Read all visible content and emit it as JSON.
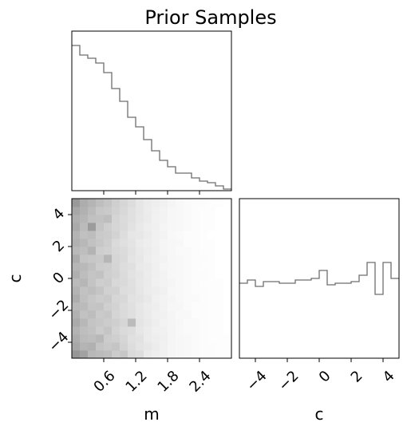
{
  "chart_data": {
    "type": "corner",
    "title": "Prior Samples",
    "parameters": [
      "m",
      "c"
    ],
    "xlabel_bottom_left": "m",
    "xlabel_bottom_right": "c",
    "ylabel_left": "c",
    "m_range": [
      0.0,
      3.0
    ],
    "c_range": [
      -5,
      5
    ],
    "m_ticks": [
      0.6,
      1.2,
      1.8,
      2.4
    ],
    "m_tick_labels": [
      "0.6",
      "1.2",
      "1.8",
      "2.4"
    ],
    "c_ticks": [
      -4,
      -2,
      0,
      2,
      4
    ],
    "c_tick_labels": [
      "−4",
      "−2",
      "0",
      "2",
      "4"
    ],
    "m_marginal": {
      "type": "step_histogram",
      "bin_edges": [
        0.0,
        0.15,
        0.3,
        0.45,
        0.6,
        0.75,
        0.9,
        1.05,
        1.2,
        1.35,
        1.5,
        1.65,
        1.8,
        1.95,
        2.1,
        2.25,
        2.4,
        2.55,
        2.7,
        2.85,
        3.0
      ],
      "relative_heights": [
        0.91,
        0.85,
        0.83,
        0.8,
        0.74,
        0.64,
        0.56,
        0.46,
        0.4,
        0.32,
        0.25,
        0.19,
        0.15,
        0.11,
        0.11,
        0.08,
        0.06,
        0.05,
        0.03,
        0.01
      ]
    },
    "c_marginal": {
      "type": "step_histogram",
      "bin_edges": [
        -5,
        -4.5,
        -4,
        -3.5,
        -3,
        -2.5,
        -2,
        -1.5,
        -1,
        -0.5,
        0,
        0.5,
        1,
        1.5,
        2,
        2.5,
        3,
        3.5,
        4,
        4.5,
        5
      ],
      "relative_heights": [
        0.47,
        0.49,
        0.45,
        0.48,
        0.48,
        0.47,
        0.47,
        0.49,
        0.49,
        0.5,
        0.55,
        0.46,
        0.47,
        0.47,
        0.48,
        0.52,
        0.6,
        0.4,
        0.6,
        0.5
      ]
    },
    "joint_2d_histogram": {
      "m_bin_edges": [
        0.0,
        0.15,
        0.3,
        0.45,
        0.6,
        0.75,
        0.9,
        1.05,
        1.2,
        1.35,
        1.5,
        1.65,
        1.8,
        1.95,
        2.1,
        2.25,
        2.4,
        2.55,
        2.7,
        2.85,
        3.0
      ],
      "c_bin_edges": [
        -5,
        -4.5,
        -4,
        -3.5,
        -3,
        -2.5,
        -2,
        -1.5,
        -1,
        -0.5,
        0,
        0.5,
        1,
        1.5,
        2,
        2.5,
        3,
        3.5,
        4,
        4.5,
        5
      ],
      "density": [
        [
          0.62,
          0.55,
          0.42,
          0.4,
          0.38,
          0.3,
          0.33,
          0.22,
          0.2,
          0.12,
          0.1,
          0.08,
          0.06,
          0.05,
          0.04,
          0.03,
          0.02,
          0.02,
          0.01,
          0.01
        ],
        [
          0.52,
          0.44,
          0.46,
          0.35,
          0.32,
          0.34,
          0.26,
          0.2,
          0.16,
          0.14,
          0.11,
          0.08,
          0.06,
          0.05,
          0.04,
          0.03,
          0.02,
          0.02,
          0.01,
          0.01
        ],
        [
          0.48,
          0.4,
          0.38,
          0.42,
          0.3,
          0.28,
          0.24,
          0.18,
          0.17,
          0.12,
          0.1,
          0.09,
          0.06,
          0.05,
          0.04,
          0.03,
          0.02,
          0.01,
          0.01,
          0.01
        ],
        [
          0.45,
          0.38,
          0.36,
          0.3,
          0.34,
          0.26,
          0.22,
          0.2,
          0.15,
          0.12,
          0.09,
          0.08,
          0.06,
          0.04,
          0.03,
          0.03,
          0.02,
          0.01,
          0.01,
          0.0
        ],
        [
          0.5,
          0.42,
          0.35,
          0.33,
          0.3,
          0.28,
          0.24,
          0.4,
          0.16,
          0.13,
          0.1,
          0.07,
          0.06,
          0.05,
          0.03,
          0.03,
          0.02,
          0.01,
          0.01,
          0.0
        ],
        [
          0.46,
          0.36,
          0.39,
          0.31,
          0.33,
          0.25,
          0.22,
          0.19,
          0.15,
          0.12,
          0.09,
          0.08,
          0.06,
          0.04,
          0.04,
          0.02,
          0.02,
          0.01,
          0.01,
          0.0
        ],
        [
          0.42,
          0.4,
          0.34,
          0.35,
          0.28,
          0.26,
          0.21,
          0.18,
          0.14,
          0.11,
          0.1,
          0.07,
          0.05,
          0.05,
          0.03,
          0.02,
          0.02,
          0.01,
          0.01,
          0.0
        ],
        [
          0.48,
          0.37,
          0.33,
          0.3,
          0.31,
          0.24,
          0.23,
          0.17,
          0.16,
          0.13,
          0.09,
          0.07,
          0.06,
          0.04,
          0.03,
          0.03,
          0.02,
          0.01,
          0.01,
          0.0
        ],
        [
          0.44,
          0.36,
          0.38,
          0.34,
          0.27,
          0.27,
          0.2,
          0.19,
          0.15,
          0.11,
          0.1,
          0.08,
          0.05,
          0.04,
          0.03,
          0.02,
          0.02,
          0.01,
          0.01,
          0.0
        ],
        [
          0.4,
          0.43,
          0.35,
          0.29,
          0.3,
          0.23,
          0.22,
          0.18,
          0.14,
          0.12,
          0.08,
          0.07,
          0.06,
          0.04,
          0.03,
          0.02,
          0.01,
          0.01,
          0.01,
          0.0
        ],
        [
          0.47,
          0.39,
          0.34,
          0.36,
          0.28,
          0.26,
          0.21,
          0.17,
          0.15,
          0.11,
          0.09,
          0.07,
          0.05,
          0.04,
          0.03,
          0.02,
          0.02,
          0.01,
          0.0,
          0.0
        ],
        [
          0.43,
          0.41,
          0.37,
          0.3,
          0.29,
          0.25,
          0.2,
          0.18,
          0.13,
          0.12,
          0.09,
          0.06,
          0.05,
          0.04,
          0.03,
          0.02,
          0.01,
          0.01,
          0.0,
          0.0
        ],
        [
          0.49,
          0.35,
          0.33,
          0.32,
          0.43,
          0.24,
          0.22,
          0.16,
          0.14,
          0.1,
          0.08,
          0.07,
          0.05,
          0.04,
          0.03,
          0.02,
          0.02,
          0.01,
          0.0,
          0.0
        ],
        [
          0.41,
          0.38,
          0.44,
          0.29,
          0.27,
          0.23,
          0.21,
          0.17,
          0.13,
          0.11,
          0.09,
          0.06,
          0.05,
          0.03,
          0.03,
          0.02,
          0.01,
          0.01,
          0.0,
          0.0
        ],
        [
          0.46,
          0.42,
          0.36,
          0.33,
          0.29,
          0.22,
          0.19,
          0.16,
          0.12,
          0.1,
          0.08,
          0.06,
          0.05,
          0.04,
          0.02,
          0.02,
          0.01,
          0.01,
          0.0,
          0.0
        ],
        [
          0.44,
          0.37,
          0.39,
          0.31,
          0.3,
          0.26,
          0.2,
          0.15,
          0.14,
          0.11,
          0.08,
          0.07,
          0.04,
          0.03,
          0.02,
          0.02,
          0.01,
          0.0,
          0.0,
          0.0
        ],
        [
          0.5,
          0.4,
          0.58,
          0.34,
          0.28,
          0.24,
          0.22,
          0.17,
          0.13,
          0.1,
          0.09,
          0.06,
          0.05,
          0.04,
          0.03,
          0.02,
          0.01,
          0.01,
          0.0,
          0.0
        ],
        [
          0.47,
          0.43,
          0.37,
          0.36,
          0.38,
          0.25,
          0.21,
          0.18,
          0.14,
          0.12,
          0.08,
          0.07,
          0.05,
          0.04,
          0.03,
          0.02,
          0.01,
          0.01,
          0.0,
          0.0
        ],
        [
          0.52,
          0.46,
          0.4,
          0.33,
          0.31,
          0.27,
          0.23,
          0.18,
          0.15,
          0.11,
          0.09,
          0.07,
          0.05,
          0.04,
          0.03,
          0.02,
          0.01,
          0.01,
          0.0,
          0.0
        ],
        [
          0.6,
          0.48,
          0.44,
          0.38,
          0.34,
          0.28,
          0.24,
          0.2,
          0.15,
          0.12,
          0.1,
          0.08,
          0.06,
          0.04,
          0.03,
          0.02,
          0.02,
          0.01,
          0.01,
          0.0
        ]
      ]
    }
  }
}
